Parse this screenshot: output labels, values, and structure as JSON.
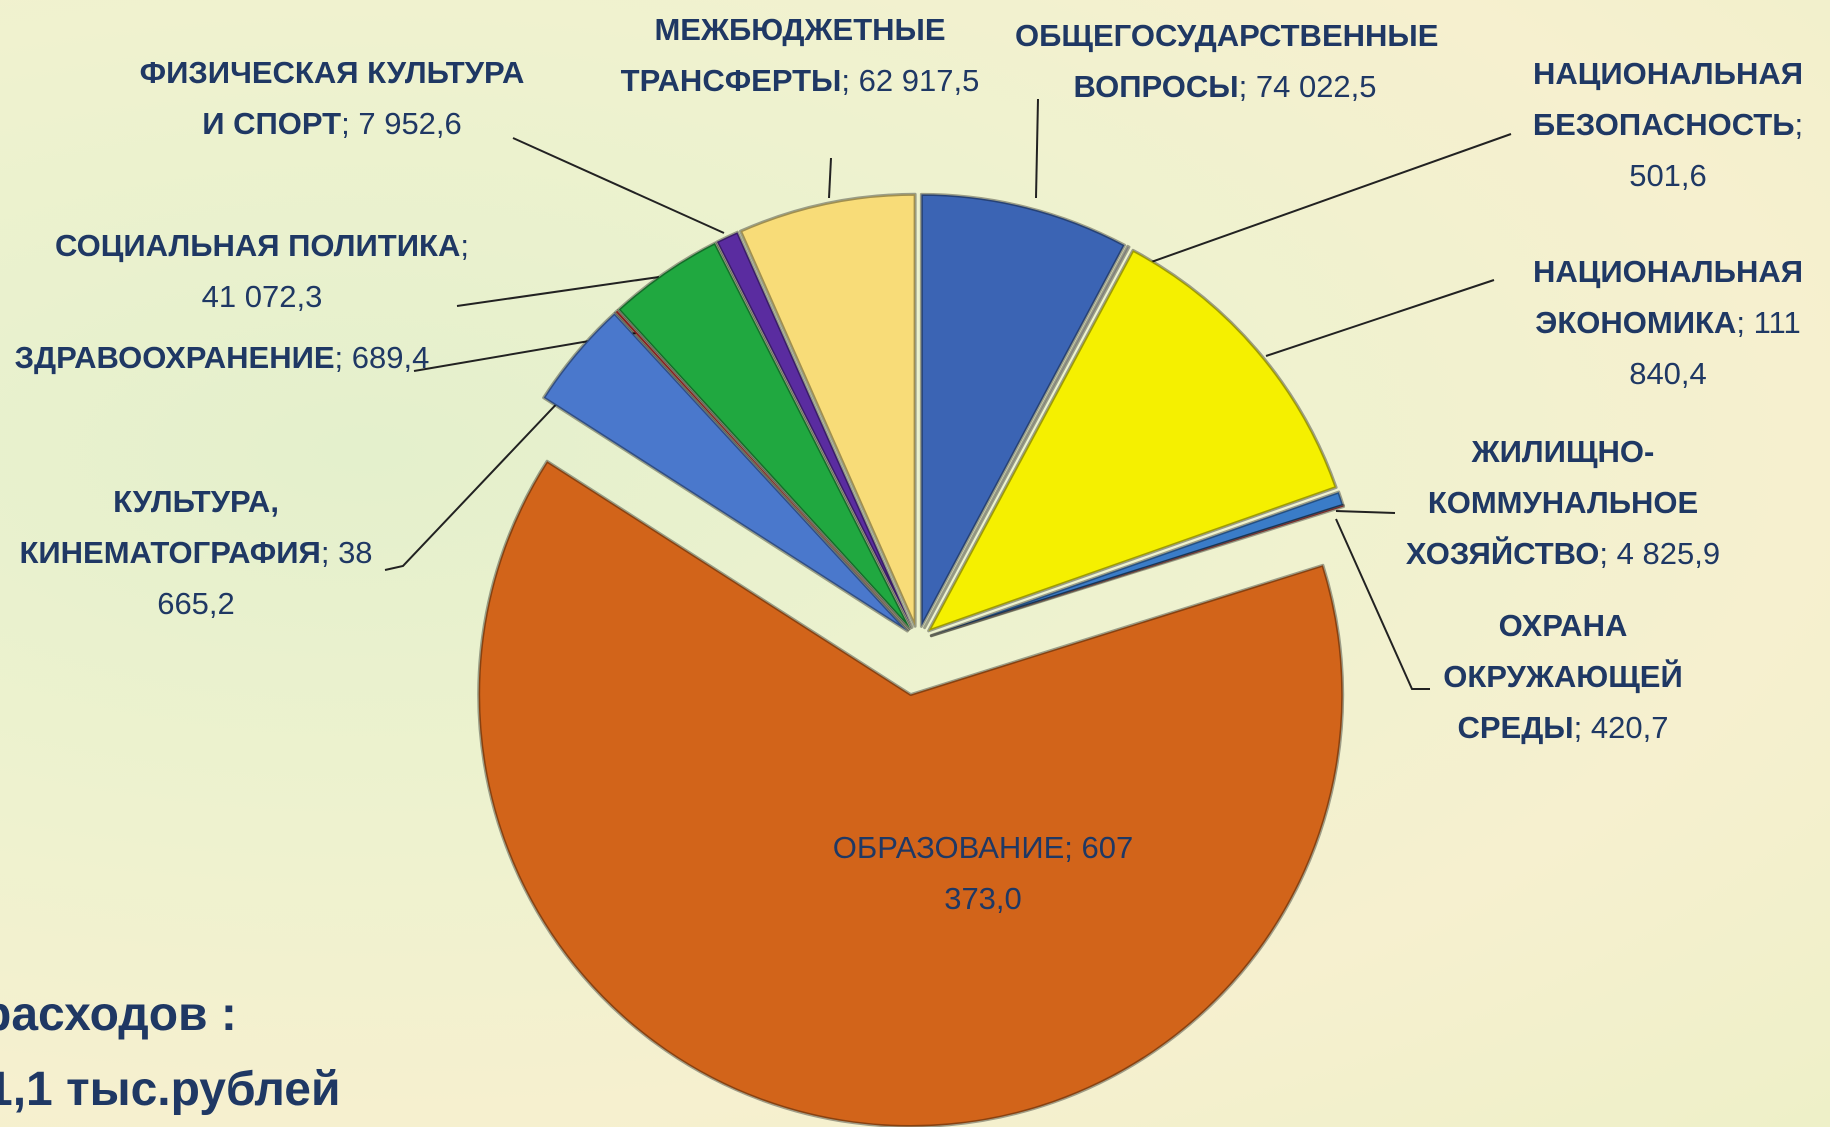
{
  "chart_data": {
    "type": "pie",
    "categories": [
      "ОБЩЕГОСУДАРСТВЕННЫЕ ВОПРОСЫ",
      "НАЦИОНАЛЬНАЯ БЕЗОПАСНОСТЬ",
      "НАЦИОНАЛЬНАЯ ЭКОНОМИКА",
      "ЖИЛИЩНО-КОММУНАЛЬНОЕ ХОЗЯЙСТВО",
      "ОХРАНА ОКРУЖАЮЩЕЙ СРЕДЫ",
      "ОБРАЗОВАНИЕ",
      "КУЛЬТУРА, КИНЕМАТОГРАФИЯ",
      "ЗДРАВООХРАНЕНИЕ",
      "СОЦИАЛЬНАЯ ПОЛИТИКА",
      "ФИЗИЧЕСКАЯ КУЛЬТУРА И СПОРТ",
      "МЕЖБЮДЖЕТНЫЕ ТРАНСФЕРТЫ"
    ],
    "values": [
      74022.5,
      501.6,
      111840.4,
      4825.9,
      420.7,
      607373.0,
      38665.2,
      689.4,
      41072.3,
      7952.6,
      62917.5
    ],
    "value_labels": [
      "74 022,5",
      "501,6",
      "111 840,4",
      "4 825,9",
      "420,7",
      "607 373,0",
      "38 665,2",
      "689,4",
      "41 072,3",
      "7 952,6",
      "62 917,5"
    ],
    "colors": [
      "#3b64b4",
      "#c0c0c0",
      "#f5f000",
      "#3a7cc8",
      "#c04040",
      "#d2641a",
      "#4a78cc",
      "#d03030",
      "#20a840",
      "#5a2ca0",
      "#f8dc78"
    ],
    "label_separator": ";",
    "annotations": [
      "расходов :",
      "1,1 тыс.рублей"
    ]
  }
}
